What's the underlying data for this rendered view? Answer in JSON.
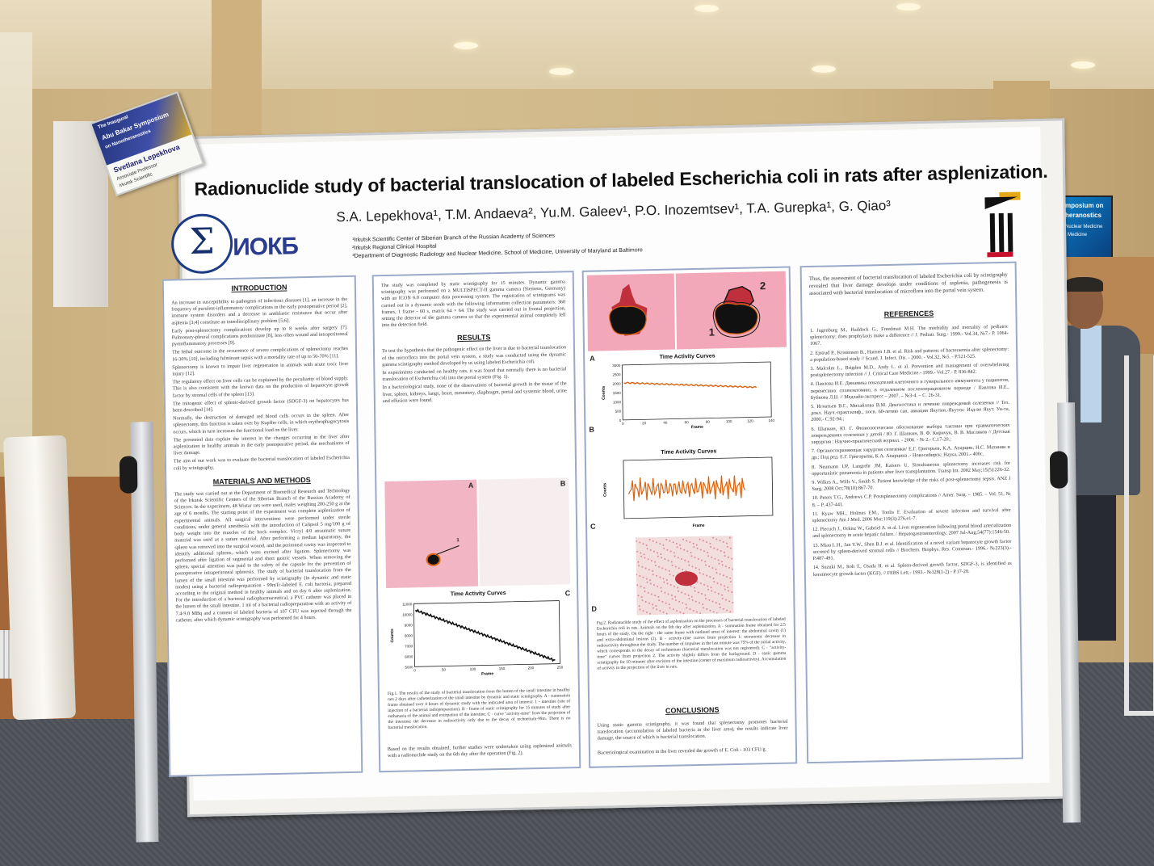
{
  "poster": {
    "title": "Radionuclide study of bacterial translocation of labeled Escherichia coli in rats after asplenization.",
    "authors": "S.A. Lepekhova¹, T.M. Andaeva², Yu.M. Galeev¹, P.O. Inozemtsev¹, T.A. Gurepka¹, G. Qiao³",
    "affiliations": [
      "¹Irkutsk Scientific Center of Siberian Branch of the Russian Academy of Sciences",
      "²Irkutsk Regional Clinical Hospital",
      "³Department of Diagnostic Radiology and Nuclear Medicine, School of Medicine, University of Maryland at Baltimore"
    ],
    "logo_text": "ИОКБ",
    "logo_symbol": "Σ"
  },
  "badge": {
    "line1": "The Inaugural",
    "line2": "Abu Bakar Symposium",
    "line3": "on Nanotheranostics",
    "name": "Svetlana Lepekhova",
    "role": "Associate Professor",
    "org": "Irkutsk Scientific"
  },
  "screen_sign": {
    "line1": "mposium on",
    "line2": "heranostics",
    "line3": "Nuclear Medicine",
    "line4": "l Medicine"
  },
  "sections": {
    "introduction_heading": "INTRODUCTION",
    "introduction_text": [
      "An increase in susceptibility to pathogens of infectious diseases [1], an increase in the frequency of purulent-inflammatory complications in the early postoperative period [2], immune system disorders and a decrease in antiblastic resistance that occur after asplenia [3;4] constitute an interdisciplinary problem [5;6].",
      "Early post-splenectomy complications develop up to 8 weeks after surgery [7]. Pulmonary-pleural complications predominate [8], less often wound and intraperitoneal pyoinflammatory processes [9].",
      "The lethal outcome in the occurrence of severe complications of splenectomy reaches 16-30% [10], including fulminant sepsis with a mortality rate of up to 50-70% [11].",
      "Splenectomy is known to impair liver regeneration in animals with acute toxic liver injury [12].",
      "The regulatory effect on liver cells can be explained by the peculiarity of blood supply. This is also consistent with the known data on the production of hepatocyte growth factor by stromal cells of the spleen [13].",
      "The mitogenic effect of splenic-derived growth factor (SDGF-3) on hepatocytes has been described [14].",
      "Normally, the destruction of damaged red blood cells occurs in the spleen. After splenectomy, this function is taken over by Kupffer cells, in which erythrophagocytosis occurs, which in turn increases the functional load on the liver.",
      "The presented data explain the interest in the changes occurring in the liver after asplenization in healthy animals in the early postoperative period, the mechanisms of liver damage.",
      "The aim of our work was to evaluate the bacterial translocation of labeled Escherichia coli by scintigraphy."
    ],
    "methods_heading": "MATERIALS AND METHODS",
    "methods_text": [
      "The study was carried out at the Department of Biomedical Research and Technology of the Irkutsk Scientific Centers of the Siberian Branch of the Russian Academy of Sciences. In the experiment, 48 Wistar rats were used, males weighing 200-250 g at the age of 6 months. The starting point of the experiment was complete asplenization of experimental animals. All surgical interventions were performed under sterile conditions, under general anesthesia with the introduction of Calipsol 5 mg/100 g of body weight into the muscles of the hock complex. Vicryl 4/0 atraumatic suture material was used as a suture material. After performing a median laparotomy, the spleen was removed into the surgical wound, and the peritoneal cavity was inspected to identify additional spleens, which were excised after ligation. Splenectomy was performed after ligation of segmental and short gastric vessels. When removing the spleen, special attention was paid to the safety of the capsule for the prevention of postoperative intraperitoneal splenosis. The study of bacterial translocation from the lumen of the small intestine was performed by scintigraphy (in dynamic and static modes) using a bacterial radiopreparation - 99mTc-labeled E. coli bacteria, prepared according to the original method in healthy animals and on day 6 after asplenization. For the introduction of a bacterial radiopharmaceutical, a PVC catheter was placed in the lumen of the small intestine. 1 ml of a bacterial radiopreparation with an activity of 7.4-9.0 MBq and a content of labeled bacteria of 107 CFU was injected through the catheter, after which dynamic scintigraphy was performed for 4 hours."
    ],
    "col2_intro": "The study was completed by static scintigraphy for 15 minutes. Dynamic gamma scintigraphy was performed on a MULTISPECT-II gamma camera (Siemens, Germany) with an ICON 6.0 computer data processing system. The registration of scintigrams was carried out in a dynamic mode with the following information collection parameters: 360 frames, 1 frame - 60 s, matrix 64 × 64. The study was carried out in frontal projection, setting the detector of the gamma camera so that the experimental animal completely fell into the detection field.",
    "results_heading": "RESULTS",
    "results_text": [
      "To test the hypothesis that the pathogenic effect on the liver is due to bacterial translocation of the microflora into the portal vein system, a study was conducted using the dynamic gamma scintigraphy method developed by us using labeled Escherichia coli.",
      "In experiments conducted on healthy rats, it was found that normally there is no bacterial translocation of Escherichia coli into the portal system (Fig. 1).",
      "In a bacteriological study, none of the observations of bacterial growth in the tissue of the liver, spleen, kidneys, lungs, heart, mesentery, diaphragm, portal and systemic blood, urine and effusion were found."
    ],
    "fig1_caption": "Fig.1. The results of the study of bacterial translocation from the lumen of the small intestine in healthy rats 2 days after catheterization of the small intestine by dynamic and static scintigraphy. A - summation frame obtained over 4 hours of dynamic study with the indicated area of interest: 1 - intestine (site of injection of a bacterial radiopreparation). B - frame of static scintigraphy for 15 minutes of study after euthanasia of the animal and extirpation of the intestine. C - curve \"activity-time\" from the projection of the intestine: the decrease in radioactivity only due to the decay of technetium-99m. There is no bacterial translocation.",
    "col2_outro": "Based on the results obtained, further studies were undertaken using asplenized animals with a radionuclide study on the 6th day after the operation (Fig. 2).",
    "fig2_caption": "Fig.2. Radionuclide study of the effect of asplenization on the processes of bacterial translocation of labeled Escherichia coli in rats. Animals on the 6th day after asplenization. A - summation frame obtained for 2.5 hours of the study. On the right - the same frame with outlined areas of interest: the abdominal cavity (1) and extra-abdominal lesions (2). B - activity-time curves from projection 1: monotonic decrease in radioactivity throughout the study. The number of impulses in the last minute was 75% of the initial activity, which corresponds to the decay of technetium (bacterial translocation was not registered). C - \"activity-time\" curves from projection 2. The activity slightly differs from the background. D - static gamma scintigraphy for 10 minutes after excision of the intestine (center of maximum radioactivity). Accumulation of activity in the projection of the liver in rats.",
    "conclusions_heading": "CONCLUSIONS",
    "conclusions_text": [
      "Using static gamma scintigraphy, it was found that splenectomy promotes bacterial translocation (accumulation of labeled bacteria in the liver area), the results indicate liver damage, the source of which is bacterial translocation.",
      "Bacteriological examination in the liver revealed the growth of E. Coli - 103 CFU/g."
    ],
    "col4_intro": "Thus, the assessment of bacterial translocation of labeled Escherichia coli by scintigraphy revealed that liver damage develops under conditions of asplenia, pathogenesis is associated with bacterial translocation of microflora into the portal vein system.",
    "references_heading": "REFERENCES",
    "references": [
      "1. Jugenburg M., Haddock G., Freedman M.H. The morbidity and mortality of pediatric splenectomy: does prophylaxis make a difference // J. Pediatr. Surg.- 1999.- Vol.34, №7.- P. 1064-1067.",
      "2. Ejstrud P., Kristensen B., Hansen J.B. et al. Risk and patterns of bacteraemia after splenectomy: a population-based study // Scand. J. Infect. Dis. - 2000. - Vol.32, №5. - P.521-525.",
      "3. Malcolm L., Brigden M.D., Andy L. et al. Prevention and management of overwhelming postsplenectomy infection // J. Critical Care Medicine.- 1999.- Vol.27.- P. 836-842.",
      "4. Павлова И.Е. Динамика показателей клеточного и гуморального иммунитета у пациентов, перенесших спленэктомию, в отдаленном послеоперационном периоде / Павлова И.Е., Бубнова Л.Н. // Медлайн-экспресс – 2007. – №3-4. – С. 26-31.",
      "5. Игнатьев В.Г., Михайлова В.М. Диагностика и лечение повреждений селезенки // Тез. докл. Науч.-практ.конф., посв. 60-летию сан. авиации Якутии.-Якутск: Изд-во Якут. Ун-та, 2000.- С.92-94.;",
      "6. Шапкин, Ю. Г. Физиологическое обоснование выбора тактики при травматических повреждениях селезенки у детей / Ю. Г. Шапкин, В. Ф. Киричук, В. В. Масляков // Детская хирургия : Научно-практический журнал. - 2006. - № 2.- С.17-20.;",
      "7. Органосохраняющая хирургия селезенки/ Е.Г. Григорьев, К.А. Апарцин, Н.С. Матинян и др.; Под ред. Е.Г. Григорьева, К.А. Апарцина .- Новосибирск: Наука, 2001.- 400с.",
      "8. Neumann UP, Langrehr JM, Kaisers U. Simultaneous splenectomy increases risk for opportunistic pneumonia in patients after liver transplantation. Transp Int. 2002 May;15(5):226-32.",
      "9. Wilkes A., Wills V., Smith S. Patient knowledge of the risks of post-splenectomy sepsis. ANZ J Surg. 2008 Oct;78(10):867-70.",
      "10. Peters T.G., Andrews C.P. Postsplenectomy complications // Amer. Surg. – 1985. – Vol. 51, № 8. – P. 437-441.",
      "11. Kyaw MH., Holmes EM., Toolis F. Evaluation of severe infection and survival after splenectomy Am J Med. 2006 Mar;119(3):276.e1-7.",
      "12. Piecuch J., Orkisz W., Gabriel A. et al. Liver regeneration following portal blood arterialization and splenectomy in acute hepatic failure. / Hepatogastroenterology. 2007 Jul-Aug;54(77):1546-50.",
      "13. Miau L.H., Jan Y.W., Shen B.J. et al. Identification of a novel variant hepatocyte growth factor secreted by spleen-derived stromal cells // Biochem. Biophys. Res. Commun.- 1996.- №223(3).- P.487-491.",
      "14. Suzuki M., Itoh T., Osada H. et al. Spleen-derived growth factor, SDGF-3, is identified as keratinocyte growth factor (KGF). // FEBS Lett.- 1993.- №328(1-2).- P.17-20."
    ]
  },
  "figures": {
    "panel_labels": [
      "A",
      "B",
      "C",
      "D"
    ],
    "region_labels": [
      "1",
      "2"
    ],
    "tac_title": "Time Activity Curves",
    "axis_x": "Frame",
    "axis_y": "Counts",
    "fig1c_yticks": [
      "11000",
      "10000",
      "9000",
      "8000",
      "7000",
      "6000",
      "5000"
    ],
    "fig1c_xticks": [
      "0",
      "50",
      "100",
      "150",
      "200",
      "250"
    ],
    "fig2b_yticks": [
      "3000",
      "2500",
      "2000",
      "1500",
      "1000",
      "500",
      "0"
    ],
    "fig2b_xticks": [
      "0",
      "20",
      "40",
      "60",
      "80",
      "100",
      "120",
      "140"
    ],
    "colors": {
      "curve": "#d9620f",
      "pink": "#f2a8b8",
      "hot": "#c0303c"
    }
  }
}
